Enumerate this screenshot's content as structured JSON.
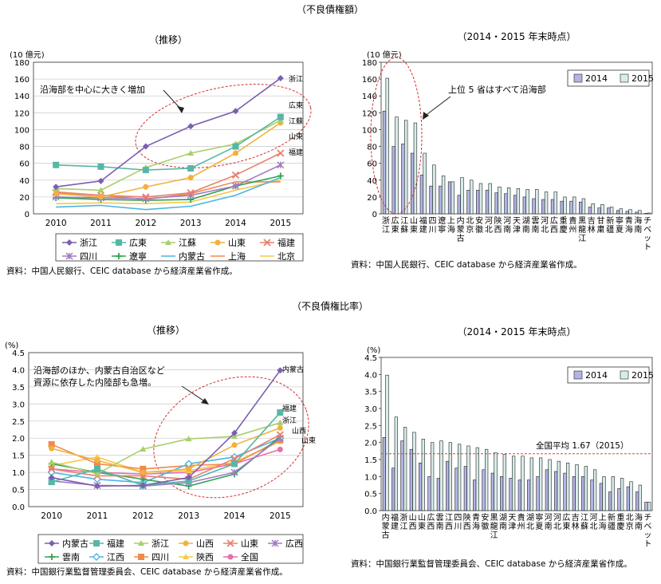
{
  "sections": {
    "amount": "（不良債権額）",
    "ratio": "（不良債権比率）"
  },
  "chart_data": [
    {
      "id": "amount_trend",
      "type": "line",
      "title": "（推移）",
      "unit_label": "(10 億元)",
      "x": [
        "2010",
        "2011",
        "2012",
        "2013",
        "2014",
        "2015"
      ],
      "ylim": [
        0,
        180
      ],
      "yticks": [
        0,
        20,
        40,
        60,
        80,
        100,
        120,
        140,
        160,
        180
      ],
      "grid": true,
      "legend_position": "bottom",
      "annotation": "沿海部を中心に大きく増加",
      "end_labels": [
        "浙江",
        "広東",
        "江蘇",
        "山東",
        "福建"
      ],
      "series": [
        {
          "name": "浙江",
          "color": "#7b5fb0",
          "marker": "diamond",
          "values": [
            32,
            39,
            80,
            104,
            122,
            161
          ]
        },
        {
          "name": "広東",
          "color": "#56b7a6",
          "marker": "square",
          "values": [
            58,
            56,
            52,
            54,
            80,
            115
          ]
        },
        {
          "name": "江蘇",
          "color": "#a8cf6a",
          "marker": "triangle",
          "values": [
            30,
            28,
            55,
            72,
            83,
            111
          ]
        },
        {
          "name": "山東",
          "color": "#f2b03c",
          "marker": "circle",
          "values": [
            24,
            20,
            32,
            43,
            72,
            108
          ]
        },
        {
          "name": "福建",
          "color": "#e8806f",
          "marker": "x",
          "values": [
            25,
            22,
            20,
            25,
            46,
            72
          ]
        },
        {
          "name": "四川",
          "color": "#a07bc4",
          "marker": "asterisk",
          "values": [
            20,
            19,
            18,
            22,
            33,
            58
          ]
        },
        {
          "name": "遼寧",
          "color": "#31a354",
          "marker": "plus",
          "values": [
            19,
            17,
            16,
            17,
            33,
            45
          ]
        },
        {
          "name": "内蒙古",
          "color": "#4bb5e6",
          "marker": "none",
          "values": [
            8,
            10,
            5,
            9,
            22,
            43
          ]
        },
        {
          "name": "上海",
          "color": "#f08a4b",
          "marker": "none",
          "values": [
            26,
            22,
            17,
            24,
            38,
            38
          ]
        },
        {
          "name": "北京",
          "color": "#f7c948",
          "marker": "none",
          "values": [
            12,
            13,
            12,
            14,
            28,
            40
          ]
        }
      ]
    },
    {
      "id": "amount_rank",
      "type": "bar",
      "title": "（2014・2015 年末時点）",
      "unit_label": "(10 億元)",
      "ylim": [
        0,
        180
      ],
      "yticks": [
        0,
        20,
        40,
        60,
        80,
        100,
        120,
        140,
        160,
        180
      ],
      "annotation": "上位 5 省はすべて沿海部",
      "categories": [
        "浙江",
        "広東",
        "江蘇",
        "山東",
        "福建",
        "四川",
        "遼寧",
        "上海",
        "内蒙古",
        "北京",
        "安徽",
        "河北",
        "陝西",
        "河南",
        "天津",
        "湖南",
        "雲南",
        "河北",
        "広西",
        "重慶",
        "貴州",
        "黒龍江",
        "吉林",
        "甘粛",
        "新疆",
        "寧夏",
        "青海",
        "海南",
        "チベット"
      ],
      "series": [
        {
          "name": "2014",
          "color": "#b3b3e6",
          "values": [
            122,
            80,
            83,
            72,
            46,
            33,
            33,
            38,
            22,
            28,
            28,
            28,
            25,
            24,
            22,
            20,
            18,
            17,
            17,
            15,
            15,
            14,
            8,
            7,
            7,
            4,
            3,
            2,
            0.5
          ]
        },
        {
          "name": "2015",
          "color": "#d6ede9",
          "values": [
            161,
            115,
            111,
            108,
            72,
            58,
            45,
            38,
            43,
            40,
            36,
            36,
            32,
            31,
            30,
            29,
            29,
            26,
            26,
            20,
            20,
            18,
            12,
            11,
            8,
            6,
            5,
            4,
            1
          ]
        }
      ]
    },
    {
      "id": "ratio_trend",
      "type": "line",
      "title": "（推移）",
      "unit_label": "(%)",
      "x": [
        "2010",
        "2011",
        "2012",
        "2013",
        "2014",
        "2015"
      ],
      "ylim": [
        0,
        4.5
      ],
      "yticks": [
        0,
        0.5,
        1.0,
        1.5,
        2.0,
        2.5,
        3.0,
        3.5,
        4.0,
        4.5
      ],
      "grid": true,
      "legend_position": "bottom",
      "annotation": "沿海部のほか、内蒙古自治区など資源に依存した内陸部も急増。",
      "end_labels": [
        "内蒙古",
        "福建",
        "浙江",
        "山西",
        "山東"
      ],
      "series": [
        {
          "name": "内蒙古",
          "color": "#7b5fb0",
          "marker": "diamond",
          "values": [
            0.85,
            0.6,
            0.62,
            0.85,
            2.15,
            3.98
          ]
        },
        {
          "name": "福建",
          "color": "#56b7a6",
          "marker": "square",
          "values": [
            0.72,
            1.1,
            0.62,
            0.75,
            1.25,
            2.75
          ]
        },
        {
          "name": "浙江",
          "color": "#a8cf6a",
          "marker": "triangle",
          "values": [
            1.3,
            0.96,
            1.68,
            1.98,
            2.05,
            2.45
          ]
        },
        {
          "name": "山西",
          "color": "#f2b03c",
          "marker": "circle",
          "values": [
            1.7,
            1.35,
            1.0,
            1.1,
            1.8,
            2.3
          ]
        },
        {
          "name": "山東",
          "color": "#e8806f",
          "marker": "x",
          "values": [
            1.1,
            0.9,
            0.9,
            0.8,
            1.4,
            2.1
          ]
        },
        {
          "name": "広西",
          "color": "#a07bc4",
          "marker": "asterisk",
          "values": [
            0.75,
            0.62,
            0.6,
            0.7,
            1.0,
            2.0
          ]
        },
        {
          "name": "雲南",
          "color": "#31a354",
          "marker": "plus",
          "values": [
            1.25,
            1.0,
            0.8,
            0.6,
            0.95,
            2.05
          ]
        },
        {
          "name": "江西",
          "color": "#4bb5e6",
          "marker": "diamond-outline",
          "values": [
            1.0,
            0.8,
            0.7,
            1.25,
            1.45,
            2.0
          ]
        },
        {
          "name": "四川",
          "color": "#f08a4b",
          "marker": "square",
          "values": [
            1.82,
            1.25,
            1.1,
            1.2,
            1.25,
            1.95
          ]
        },
        {
          "name": "陝西",
          "color": "#f7c948",
          "marker": "triangle",
          "values": [
            1.2,
            1.45,
            1.0,
            1.05,
            1.3,
            1.9
          ]
        },
        {
          "name": "全国",
          "color": "#e86fa8",
          "marker": "circle",
          "values": [
            1.1,
            1.0,
            0.95,
            1.0,
            1.25,
            1.67
          ]
        }
      ]
    },
    {
      "id": "ratio_rank",
      "type": "bar",
      "title": "（2014・2015 年末時点）",
      "unit_label": "(%)",
      "ylim": [
        0,
        4.5
      ],
      "yticks": [
        0,
        0.5,
        1.0,
        1.5,
        2.0,
        2.5,
        3.0,
        3.5,
        4.0,
        4.5
      ],
      "reference_line": {
        "value": 1.67,
        "label": "全国平均 1.67（2015）",
        "color": "#e0443a"
      },
      "categories": [
        "内蒙古",
        "福建",
        "浙江",
        "山西",
        "山東",
        "広西",
        "雲南",
        "江西",
        "四川",
        "陝西",
        "青海",
        "安徽",
        "黒龍江",
        "湖南",
        "天津",
        "貴州",
        "湖北",
        "寧夏",
        "河南",
        "河北",
        "広東",
        "吉林",
        "江蘇",
        "河北",
        "上海",
        "新疆",
        "重慶",
        "北京",
        "海南",
        "チベット"
      ],
      "series": [
        {
          "name": "2014",
          "color": "#b3b3e6",
          "values": [
            2.15,
            1.25,
            2.05,
            1.8,
            1.4,
            1.0,
            0.95,
            1.45,
            1.25,
            1.3,
            0.9,
            1.2,
            1.1,
            1.0,
            0.95,
            0.9,
            0.9,
            1.0,
            1.2,
            1.15,
            1.1,
            1.0,
            1.0,
            0.9,
            0.8,
            0.55,
            0.65,
            0.7,
            0.55,
            0.25
          ]
        },
        {
          "name": "2015",
          "color": "#d6ede9",
          "values": [
            3.98,
            2.75,
            2.45,
            2.3,
            2.1,
            2.0,
            2.05,
            2.0,
            1.95,
            1.9,
            1.85,
            1.8,
            1.7,
            1.65,
            1.6,
            1.6,
            1.55,
            1.55,
            1.5,
            1.45,
            1.4,
            1.35,
            1.3,
            1.2,
            1.0,
            1.0,
            0.95,
            0.85,
            0.75,
            0.25
          ]
        }
      ]
    }
  ],
  "sources": {
    "amount_trend": "資料：中国人民銀行、CEIC database から経済産業省作成。",
    "amount_rank": "資料：中国人民銀行、CEIC database から経済産業省作成。",
    "ratio_trend": "資料：中国銀行業監督管理委員会、CEIC database から経済産業省作成。",
    "ratio_rank": "資料：中国銀行業監督管理委員会、CEIC database から経済産業省作成。"
  }
}
